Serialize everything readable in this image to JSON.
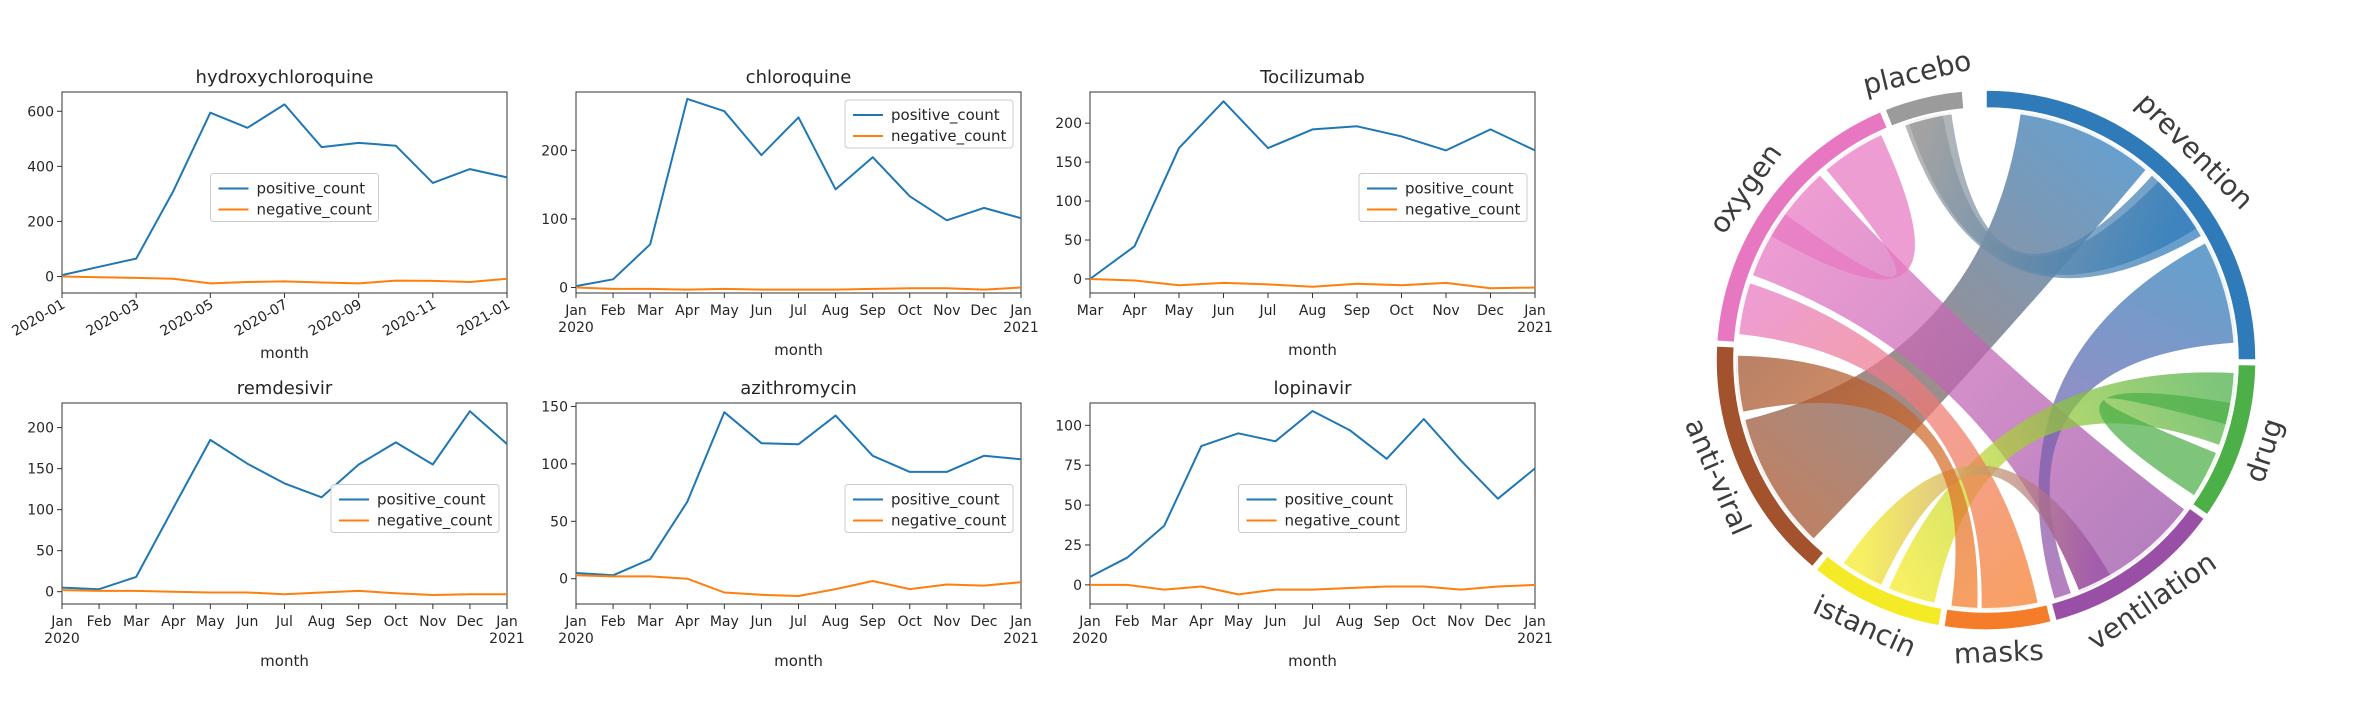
{
  "colors": {
    "positive": "#1f77b4",
    "negative": "#ff7f0e"
  },
  "chart_data": [
    {
      "type": "line",
      "title": "hydroxychloroquine",
      "xlabel": "month",
      "x_ticks": [
        "2020-01",
        "2020-03",
        "2020-05",
        "2020-07",
        "2020-09",
        "2020-11",
        "2021-01"
      ],
      "x_ticks_rotated": true,
      "y_ticks": [
        "0",
        "200",
        "400",
        "600"
      ],
      "ylim": [
        -60,
        670
      ],
      "legend_position": "center",
      "series": [
        {
          "name": "positive_count",
          "values": [
            5,
            35,
            65,
            310,
            595,
            540,
            625,
            470,
            485,
            475,
            340,
            390,
            360
          ]
        },
        {
          "name": "negative_count",
          "values": [
            0,
            -3,
            -5,
            -8,
            -25,
            -20,
            -18,
            -22,
            -25,
            -15,
            -16,
            -20,
            -8
          ]
        }
      ]
    },
    {
      "type": "line",
      "title": "chloroquine",
      "xlabel": "month",
      "x_ticks": [
        "Jan\n2020",
        "Feb",
        "Mar",
        "Apr",
        "May",
        "Jun",
        "Jul",
        "Aug",
        "Sep",
        "Oct",
        "Nov",
        "Dec",
        "Jan\n2021"
      ],
      "y_ticks": [
        "0",
        "100",
        "200"
      ],
      "ylim": [
        -8,
        285
      ],
      "legend_position": "upper right",
      "series": [
        {
          "name": "positive_count",
          "values": [
            2,
            12,
            63,
            275,
            257,
            193,
            248,
            143,
            190,
            133,
            98,
            116,
            101
          ]
        },
        {
          "name": "negative_count",
          "values": [
            0,
            -2,
            -2,
            -3,
            -2,
            -3,
            -3,
            -3,
            -2,
            -1,
            -1,
            -3,
            0
          ]
        }
      ]
    },
    {
      "type": "line",
      "title": "Tocilizumab",
      "xlabel": "month",
      "x_ticks": [
        "Mar",
        "Apr",
        "May",
        "Jun",
        "Jul",
        "Aug",
        "Sep",
        "Oct",
        "Nov",
        "Dec",
        "Jan\n2021"
      ],
      "y_ticks": [
        "0",
        "50",
        "100",
        "150",
        "200"
      ],
      "ylim": [
        -18,
        240
      ],
      "legend_position": "center right",
      "series": [
        {
          "name": "positive_count",
          "values": [
            0,
            42,
            168,
            228,
            168,
            192,
            196,
            183,
            165,
            192,
            165
          ]
        },
        {
          "name": "negative_count",
          "values": [
            0,
            -2,
            -8,
            -5,
            -7,
            -10,
            -6,
            -8,
            -5,
            -12,
            -11
          ]
        }
      ]
    },
    {
      "type": "line",
      "title": "remdesivir",
      "xlabel": "month",
      "x_ticks": [
        "Jan\n2020",
        "Feb",
        "Mar",
        "Apr",
        "May",
        "Jun",
        "Jul",
        "Aug",
        "Sep",
        "Oct",
        "Nov",
        "Dec",
        "Jan\n2021"
      ],
      "y_ticks": [
        "0",
        "50",
        "100",
        "150",
        "200"
      ],
      "ylim": [
        -15,
        230
      ],
      "legend_position": "center right",
      "series": [
        {
          "name": "positive_count",
          "values": [
            5,
            3,
            18,
            102,
            185,
            156,
            132,
            115,
            155,
            182,
            155,
            220,
            180
          ]
        },
        {
          "name": "negative_count",
          "values": [
            2,
            1,
            1,
            0,
            -1,
            -1,
            -3,
            -1,
            1,
            -2,
            -4,
            -3,
            -3
          ]
        }
      ]
    },
    {
      "type": "line",
      "title": "azithromycin",
      "xlabel": "month",
      "x_ticks": [
        "Jan\n2020",
        "Feb",
        "Mar",
        "Apr",
        "May",
        "Jun",
        "Jul",
        "Aug",
        "Sep",
        "Oct",
        "Nov",
        "Dec",
        "Jan\n2021"
      ],
      "y_ticks": [
        "0",
        "50",
        "100",
        "150"
      ],
      "ylim": [
        -22,
        153
      ],
      "legend_position": "center right",
      "series": [
        {
          "name": "positive_count",
          "values": [
            5,
            3,
            17,
            67,
            145,
            118,
            117,
            142,
            107,
            93,
            93,
            107,
            104
          ]
        },
        {
          "name": "negative_count",
          "values": [
            3,
            2,
            2,
            0,
            -12,
            -14,
            -15,
            -9,
            -2,
            -9,
            -5,
            -6,
            -3
          ]
        }
      ]
    },
    {
      "type": "line",
      "title": "lopinavir",
      "xlabel": "month",
      "x_ticks": [
        "Jan\n2020",
        "Feb",
        "Mar",
        "Apr",
        "May",
        "Jun",
        "Jul",
        "Aug",
        "Sep",
        "Oct",
        "Nov",
        "Dec",
        "Jan\n2021"
      ],
      "y_ticks": [
        "0",
        "25",
        "50",
        "75",
        "100"
      ],
      "ylim": [
        -12,
        114
      ],
      "legend_position": "center",
      "series": [
        {
          "name": "positive_count",
          "values": [
            5,
            17,
            37,
            87,
            95,
            90,
            109,
            97,
            79,
            104,
            78,
            54,
            73
          ]
        },
        {
          "name": "negative_count",
          "values": [
            0,
            0,
            -3,
            -1,
            -6,
            -3,
            -3,
            -2,
            -1,
            -1,
            -3,
            -1,
            0
          ]
        }
      ]
    },
    {
      "type": "chord",
      "groups": [
        {
          "label": "prevention",
          "color": "#2f7ab8"
        },
        {
          "label": "drug",
          "color": "#4caf48"
        },
        {
          "label": "ventilation",
          "color": "#9a4fa6"
        },
        {
          "label": "masks",
          "color": "#f57c28"
        },
        {
          "label": "istancin",
          "color": "#f4ea25"
        },
        {
          "label": "anti-viral",
          "color": "#a2522c"
        },
        {
          "label": "oxygen",
          "color": "#e877c1"
        },
        {
          "label": "placebo",
          "color": "#9b9b9b"
        }
      ],
      "arcs_degrees": [
        [
          0,
          90
        ],
        [
          91,
          125
        ],
        [
          126,
          165
        ],
        [
          166,
          189
        ],
        [
          190,
          219
        ],
        [
          220,
          273
        ],
        [
          274,
          337
        ],
        [
          338,
          355
        ]
      ],
      "ribbons": [
        {
          "from": 5,
          "to": 0,
          "from_deg": [
            224,
            256
          ],
          "to_deg": [
            8,
            40
          ]
        },
        {
          "from": 6,
          "to": 2,
          "from_deg": [
            290,
            318
          ],
          "to_deg": [
            127,
            158
          ]
        },
        {
          "from": 7,
          "to": 0,
          "from_deg": [
            341,
            352
          ],
          "to_deg": [
            42,
            60
          ]
        },
        {
          "from": 0,
          "to": 2,
          "from_deg": [
            62,
            86
          ],
          "to_deg": [
            160,
            164
          ]
        },
        {
          "from": 1,
          "to": 4,
          "from_deg": [
            93,
            110
          ],
          "to_deg": [
            192,
            203
          ]
        },
        {
          "from": 3,
          "to": 6,
          "from_deg": [
            168,
            181
          ],
          "to_deg": [
            276,
            288
          ]
        },
        {
          "from": 4,
          "to": 2,
          "from_deg": [
            205,
            215
          ],
          "to_deg": [
            150,
            158
          ]
        },
        {
          "from": 5,
          "to": 3,
          "from_deg": [
            258,
            271
          ],
          "to_deg": [
            182,
            188
          ]
        },
        {
          "from": 6,
          "to": 6,
          "from_deg": [
            320,
            335
          ],
          "to_deg": [
            300,
            306
          ]
        },
        {
          "from": 1,
          "to": 1,
          "from_deg": [
            112,
            123
          ],
          "to_deg": [
            100,
            105
          ]
        },
        {
          "from": 0,
          "to": 7,
          "from_deg": [
            44,
            58
          ],
          "to_deg": [
            342,
            350
          ]
        }
      ]
    }
  ]
}
